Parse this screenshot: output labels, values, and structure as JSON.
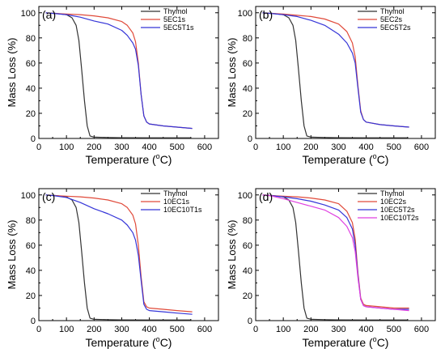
{
  "chart_data": [
    {
      "type": "line",
      "panel_label": "(a)",
      "xlabel_pre": "Temperature (",
      "xlabel_deg": "o",
      "xlabel_post": "C)",
      "ylabel": "Mass Loss (%)",
      "xlim": [
        0,
        650
      ],
      "ylim": [
        0,
        105
      ],
      "xticks": [
        0,
        100,
        200,
        300,
        400,
        500,
        600
      ],
      "yticks": [
        0,
        20,
        40,
        60,
        80,
        100
      ],
      "legend_position": "top-right",
      "series": [
        {
          "name": "Thymol",
          "color": "#333333",
          "x": [
            25,
            60,
            100,
            120,
            135,
            145,
            155,
            165,
            175,
            185,
            200,
            250,
            300,
            400,
            550
          ],
          "y": [
            100,
            99.5,
            98.5,
            96,
            90,
            78,
            55,
            30,
            10,
            2,
            1,
            0.8,
            0.6,
            0.5,
            0.5
          ]
        },
        {
          "name": "5EC1s",
          "color": "#e04a3a",
          "x": [
            25,
            50,
            100,
            150,
            200,
            250,
            300,
            320,
            340,
            350,
            360,
            370,
            380,
            390,
            400,
            450,
            500,
            555
          ],
          "y": [
            100,
            99.5,
            99,
            98.5,
            97.5,
            96,
            93,
            90,
            84,
            77,
            60,
            35,
            18,
            13,
            11.5,
            10,
            9,
            8
          ]
        },
        {
          "name": "5EC5T1s",
          "color": "#3535d8",
          "x": [
            25,
            50,
            100,
            150,
            200,
            250,
            300,
            320,
            340,
            350,
            360,
            370,
            380,
            390,
            400,
            450,
            500,
            555
          ],
          "y": [
            100,
            99.5,
            98.5,
            96.5,
            93.5,
            91,
            86,
            82,
            76,
            71,
            58,
            35,
            18,
            13,
            11.5,
            10,
            9,
            8
          ]
        }
      ]
    },
    {
      "type": "line",
      "panel_label": "(b)",
      "xlabel_pre": "Temperature (",
      "xlabel_deg": "o",
      "xlabel_post": "C)",
      "ylabel": "Mass Loss (%)",
      "xlim": [
        0,
        650
      ],
      "ylim": [
        0,
        105
      ],
      "xticks": [
        0,
        100,
        200,
        300,
        400,
        500,
        600
      ],
      "yticks": [
        0,
        20,
        40,
        60,
        80,
        100
      ],
      "legend_position": "top-right",
      "series": [
        {
          "name": "Thymol",
          "color": "#333333",
          "x": [
            25,
            60,
            100,
            120,
            135,
            145,
            155,
            165,
            175,
            185,
            200,
            250,
            300,
            400,
            550
          ],
          "y": [
            100,
            99.5,
            98.5,
            96,
            90,
            78,
            55,
            30,
            10,
            2,
            1,
            0.8,
            0.6,
            0.5,
            0.5
          ]
        },
        {
          "name": "5EC2s",
          "color": "#e04a3a",
          "x": [
            25,
            50,
            100,
            150,
            200,
            250,
            300,
            330,
            350,
            360,
            370,
            380,
            390,
            400,
            450,
            500,
            555
          ],
          "y": [
            100,
            99.5,
            99,
            98,
            97,
            95,
            91,
            85,
            76,
            65,
            42,
            22,
            15,
            13,
            11,
            10,
            9
          ]
        },
        {
          "name": "5EC5T2s",
          "color": "#3535d8",
          "x": [
            25,
            50,
            100,
            150,
            200,
            250,
            300,
            330,
            350,
            360,
            370,
            380,
            390,
            400,
            450,
            500,
            555
          ],
          "y": [
            100,
            99.5,
            98.5,
            97,
            94,
            90,
            83,
            76,
            68,
            60,
            40,
            21,
            15,
            13,
            11,
            10,
            9
          ]
        }
      ]
    },
    {
      "type": "line",
      "panel_label": "(c)",
      "xlabel_pre": "Temperature (",
      "xlabel_deg": "o",
      "xlabel_post": "C)",
      "ylabel": "Mass Loss (%)",
      "xlim": [
        0,
        650
      ],
      "ylim": [
        0,
        105
      ],
      "xticks": [
        0,
        100,
        200,
        300,
        400,
        500,
        600
      ],
      "yticks": [
        0,
        20,
        40,
        60,
        80,
        100
      ],
      "legend_position": "top-right",
      "series": [
        {
          "name": "Thymol",
          "color": "#333333",
          "x": [
            25,
            60,
            100,
            120,
            135,
            145,
            155,
            165,
            175,
            185,
            200,
            250,
            300,
            400,
            550
          ],
          "y": [
            100,
            99.5,
            98.5,
            96,
            90,
            78,
            55,
            30,
            10,
            2,
            1,
            0.8,
            0.6,
            0.5,
            0.5
          ]
        },
        {
          "name": "10EC1s",
          "color": "#e04a3a",
          "x": [
            25,
            50,
            100,
            150,
            200,
            250,
            300,
            320,
            340,
            350,
            360,
            370,
            380,
            390,
            400,
            450,
            500,
            555
          ],
          "y": [
            100,
            99.5,
            99,
            98.5,
            97.5,
            96,
            93,
            90,
            84,
            77,
            60,
            35,
            15,
            11,
            10,
            9,
            8,
            7
          ]
        },
        {
          "name": "10EC10T1s",
          "color": "#3535d8",
          "x": [
            25,
            50,
            100,
            150,
            200,
            250,
            300,
            320,
            340,
            350,
            360,
            370,
            380,
            390,
            400,
            450,
            500,
            555
          ],
          "y": [
            100,
            99.5,
            98,
            94,
            89,
            85,
            80,
            76,
            70,
            64,
            52,
            32,
            13,
            9,
            8,
            7,
            6,
            5
          ]
        }
      ]
    },
    {
      "type": "line",
      "panel_label": "(d)",
      "xlabel_pre": "Temperature (",
      "xlabel_deg": "o",
      "xlabel_post": "C)",
      "ylabel": "Mass Loss (%)",
      "xlim": [
        0,
        650
      ],
      "ylim": [
        0,
        105
      ],
      "xticks": [
        0,
        100,
        200,
        300,
        400,
        500,
        600
      ],
      "yticks": [
        0,
        20,
        40,
        60,
        80,
        100
      ],
      "legend_position": "top-right",
      "series": [
        {
          "name": "Thymol",
          "color": "#333333",
          "x": [
            25,
            60,
            100,
            120,
            135,
            145,
            155,
            165,
            175,
            185,
            200,
            250,
            300,
            400,
            550
          ],
          "y": [
            100,
            99.5,
            98.5,
            96,
            90,
            78,
            55,
            30,
            10,
            2,
            1,
            0.8,
            0.6,
            0.5,
            0.5
          ]
        },
        {
          "name": "10EC2s",
          "color": "#e04a3a",
          "x": [
            25,
            50,
            100,
            150,
            200,
            250,
            300,
            330,
            350,
            360,
            370,
            380,
            390,
            400,
            450,
            500,
            555
          ],
          "y": [
            100,
            99.5,
            99,
            98.5,
            97.5,
            96,
            93,
            87,
            78,
            65,
            38,
            18,
            13,
            12,
            11,
            10,
            10
          ]
        },
        {
          "name": "10EC5T2s",
          "color": "#3535d8",
          "x": [
            25,
            50,
            100,
            150,
            200,
            250,
            300,
            330,
            350,
            360,
            370,
            380,
            390,
            400,
            450,
            500,
            555
          ],
          "y": [
            100,
            99.5,
            98.5,
            97,
            95,
            92,
            88,
            82,
            73,
            60,
            36,
            17,
            12,
            11,
            10,
            9,
            9
          ]
        },
        {
          "name": "10EC10T2s",
          "color": "#e040e0",
          "x": [
            25,
            50,
            100,
            150,
            200,
            250,
            300,
            330,
            350,
            360,
            370,
            380,
            390,
            400,
            450,
            500,
            555
          ],
          "y": [
            100,
            99.5,
            97,
            94,
            91,
            88,
            82,
            75,
            66,
            55,
            34,
            17,
            12,
            11,
            10,
            9,
            8
          ]
        }
      ]
    }
  ]
}
